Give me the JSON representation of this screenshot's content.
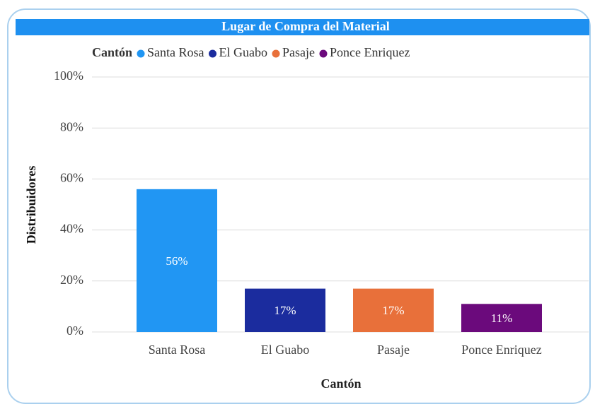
{
  "chart_data": {
    "type": "bar",
    "title": "Lugar de Compra del Material",
    "legend_title": "Cantón",
    "categories": [
      "Santa Rosa",
      "El Guabo",
      "Pasaje",
      "Ponce Enriquez"
    ],
    "values": [
      56,
      17,
      17,
      11
    ],
    "value_labels": [
      "56%",
      "17%",
      "17%",
      "11%"
    ],
    "colors": [
      "#2196f3",
      "#1b2c9e",
      "#e8703a",
      "#6b0a7c"
    ],
    "xlabel": "Cantón",
    "ylabel": "Distribuidores",
    "ylim": [
      0,
      100
    ],
    "yticks": [
      {
        "value": 0,
        "label": "0%"
      },
      {
        "value": 20,
        "label": "20%"
      },
      {
        "value": 40,
        "label": "40%"
      },
      {
        "value": 60,
        "label": "60%"
      },
      {
        "value": 80,
        "label": "80%"
      },
      {
        "value": 100,
        "label": "100%"
      }
    ],
    "grid": true,
    "legend": "top"
  }
}
